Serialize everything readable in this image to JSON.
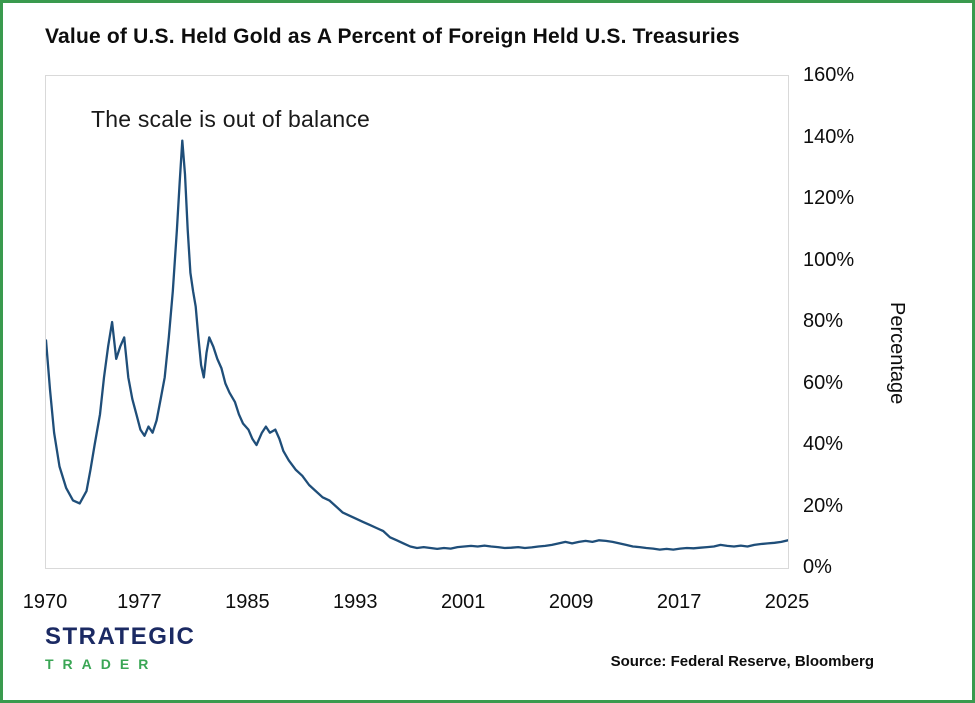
{
  "title": "Value of U.S. Held Gold as A Percent of Foreign Held U.S. Treasuries",
  "annotation": "The scale is out of balance",
  "source": "Source: Federal Reserve, Bloomberg",
  "logo": {
    "name": "STRATEGIC",
    "sub": "TRADER"
  },
  "colors": {
    "line": "#1f4e79",
    "frame_border": "#3a9a4e",
    "logo_navy": "#1b2a63",
    "logo_green": "#3aa655"
  },
  "chart_data": {
    "type": "line",
    "title": "Value of U.S. Held Gold as A Percent of Foreign Held U.S. Treasuries",
    "xlabel": "",
    "ylabel": "Percentage",
    "xlim": [
      1970,
      2025
    ],
    "ylim": [
      0,
      160
    ],
    "x_ticks": [
      1970,
      1977,
      1985,
      1993,
      2001,
      2009,
      2017,
      2025
    ],
    "y_ticks": [
      0,
      20,
      40,
      60,
      80,
      100,
      120,
      140,
      160
    ],
    "y_tick_suffix": "%",
    "grid": false,
    "legend": false,
    "annotations": [
      "The scale is out of balance"
    ],
    "x": [
      1970.0,
      1970.3,
      1970.6,
      1971.0,
      1971.5,
      1972.0,
      1972.5,
      1973.0,
      1973.3,
      1973.6,
      1974.0,
      1974.3,
      1974.6,
      1974.9,
      1975.2,
      1975.5,
      1975.8,
      1976.1,
      1976.4,
      1976.7,
      1977.0,
      1977.3,
      1977.6,
      1977.9,
      1978.2,
      1978.5,
      1978.8,
      1979.1,
      1979.4,
      1979.7,
      1979.9,
      1980.1,
      1980.3,
      1980.5,
      1980.7,
      1980.9,
      1981.1,
      1981.3,
      1981.5,
      1981.7,
      1981.9,
      1982.1,
      1982.4,
      1982.7,
      1983.0,
      1983.3,
      1983.6,
      1984.0,
      1984.3,
      1984.6,
      1985.0,
      1985.3,
      1985.6,
      1986.0,
      1986.3,
      1986.6,
      1987.0,
      1987.3,
      1987.6,
      1988.0,
      1988.5,
      1989.0,
      1989.5,
      1990.0,
      1990.5,
      1991.0,
      1991.5,
      1992.0,
      1992.5,
      1993.0,
      1993.5,
      1994.0,
      1994.5,
      1995.0,
      1995.5,
      1996.0,
      1996.5,
      1997.0,
      1997.5,
      1998.0,
      1998.5,
      1999.0,
      1999.5,
      2000.0,
      2000.5,
      2001.0,
      2001.5,
      2002.0,
      2002.5,
      2003.0,
      2003.5,
      2004.0,
      2004.5,
      2005.0,
      2005.5,
      2006.0,
      2006.5,
      2007.0,
      2007.5,
      2008.0,
      2008.5,
      2009.0,
      2009.5,
      2010.0,
      2010.5,
      2011.0,
      2011.5,
      2012.0,
      2012.5,
      2013.0,
      2013.5,
      2014.0,
      2014.5,
      2015.0,
      2015.5,
      2016.0,
      2016.5,
      2017.0,
      2017.5,
      2018.0,
      2018.5,
      2019.0,
      2019.5,
      2020.0,
      2020.5,
      2021.0,
      2021.5,
      2022.0,
      2022.5,
      2023.0,
      2023.5,
      2024.0,
      2024.5,
      2025.0
    ],
    "values": [
      74,
      58,
      44,
      33,
      26,
      22,
      21,
      25,
      32,
      40,
      50,
      62,
      72,
      80,
      68,
      72,
      75,
      62,
      55,
      50,
      45,
      43,
      46,
      44,
      48,
      55,
      62,
      75,
      90,
      110,
      125,
      139,
      128,
      110,
      96,
      90,
      85,
      75,
      66,
      62,
      70,
      75,
      72,
      68,
      65,
      60,
      57,
      54,
      50,
      47,
      45,
      42,
      40,
      44,
      46,
      44,
      45,
      42,
      38,
      35,
      32,
      30,
      27,
      25,
      23,
      22,
      20,
      18,
      17,
      16,
      15,
      14,
      13,
      12,
      10,
      9,
      8,
      7,
      6.5,
      6.8,
      6.5,
      6.2,
      6.5,
      6.3,
      6.8,
      7,
      7.2,
      7,
      7.3,
      7,
      6.8,
      6.5,
      6.6,
      6.8,
      6.5,
      6.7,
      7,
      7.2,
      7.5,
      8,
      8.5,
      8,
      8.5,
      8.8,
      8.5,
      9,
      8.8,
      8.5,
      8,
      7.5,
      7,
      6.8,
      6.5,
      6.3,
      6,
      6.2,
      6,
      6.3,
      6.5,
      6.4,
      6.6,
      6.8,
      7,
      7.5,
      7.2,
      7,
      7.3,
      7,
      7.5,
      7.8,
      8,
      8.2,
      8.5,
      9
    ]
  }
}
